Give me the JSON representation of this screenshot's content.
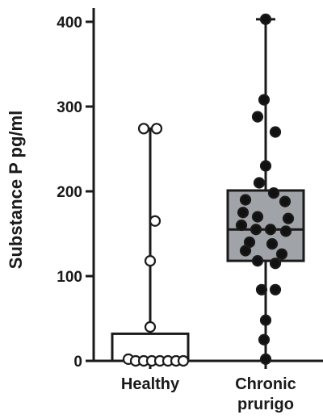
{
  "chart_data": {
    "type": "box",
    "ylabel": "Substance P pg/ml",
    "ylim": [
      0,
      400
    ],
    "yticks": [
      "0",
      "100",
      "200",
      "300",
      "400"
    ],
    "groups": [
      {
        "label_lines": [
          "Healthy"
        ],
        "fill": "#ffffff",
        "point_fill": "#ffffff",
        "box": {
          "min": 0,
          "q1": 0,
          "median": 0,
          "q3": 32,
          "max": 274
        },
        "points": [
          {
            "x": -0.27,
            "y": 2
          },
          {
            "x": -0.18,
            "y": 0
          },
          {
            "x": -0.08,
            "y": 0
          },
          {
            "x": 0.02,
            "y": 0
          },
          {
            "x": 0.12,
            "y": 0
          },
          {
            "x": 0.22,
            "y": 0
          },
          {
            "x": 0.32,
            "y": 0
          },
          {
            "x": 0.41,
            "y": 0
          },
          {
            "x": 0.0,
            "y": 40
          },
          {
            "x": 0.0,
            "y": 118
          },
          {
            "x": 0.06,
            "y": 165
          },
          {
            "x": -0.08,
            "y": 274
          },
          {
            "x": 0.08,
            "y": 274
          }
        ]
      },
      {
        "label_lines": [
          "Chronic",
          "prurigo"
        ],
        "fill": "#a0a3a8",
        "point_fill": "#111111",
        "box": {
          "min": 0,
          "q1": 118,
          "median": 155,
          "q3": 201,
          "max": 403
        },
        "points": [
          {
            "x": 0.0,
            "y": 403
          },
          {
            "x": -0.02,
            "y": 308
          },
          {
            "x": -0.1,
            "y": 288
          },
          {
            "x": 0.12,
            "y": 270
          },
          {
            "x": 0.0,
            "y": 230
          },
          {
            "x": -0.08,
            "y": 210
          },
          {
            "x": 0.1,
            "y": 198
          },
          {
            "x": -0.25,
            "y": 190
          },
          {
            "x": 0.24,
            "y": 188
          },
          {
            "x": -0.28,
            "y": 175
          },
          {
            "x": -0.1,
            "y": 170
          },
          {
            "x": 0.28,
            "y": 168
          },
          {
            "x": -0.3,
            "y": 160
          },
          {
            "x": -0.12,
            "y": 155
          },
          {
            "x": 0.06,
            "y": 155
          },
          {
            "x": 0.25,
            "y": 153
          },
          {
            "x": -0.2,
            "y": 140
          },
          {
            "x": 0.08,
            "y": 138
          },
          {
            "x": -0.25,
            "y": 130
          },
          {
            "x": 0.2,
            "y": 126
          },
          {
            "x": -0.1,
            "y": 118
          },
          {
            "x": 0.12,
            "y": 115
          },
          {
            "x": -0.05,
            "y": 84
          },
          {
            "x": 0.12,
            "y": 84
          },
          {
            "x": 0.0,
            "y": 48
          },
          {
            "x": -0.02,
            "y": 25
          },
          {
            "x": 0.0,
            "y": 2
          }
        ]
      }
    ]
  }
}
